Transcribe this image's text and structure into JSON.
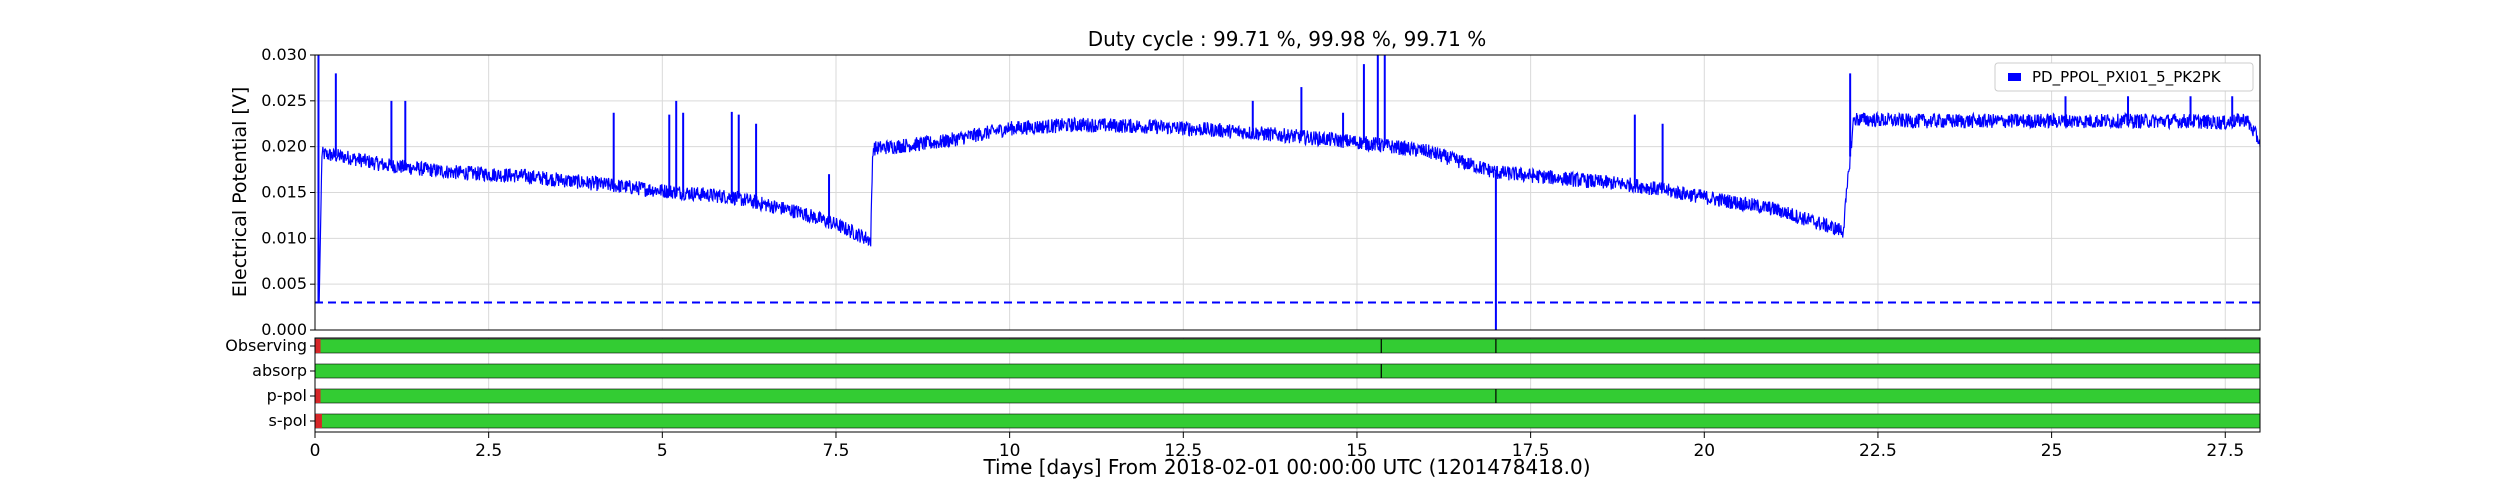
{
  "title": "Duty cycle : 99.71 %, 99.98 %, 99.71 %",
  "colors": {
    "signal": "#0000ff",
    "segment_active": "#33cc33",
    "segment_inactive": "#d62728",
    "grid": "#d9d9d9"
  },
  "chart_data": {
    "type": "line",
    "title": "Duty cycle : 99.71 %, 99.98 %, 99.71 %",
    "xlabel": "Time [days] From 2018-02-01 00:00:00 UTC (1201478418.0)",
    "ylabel": "Electrical Potential [V]",
    "xlim": [
      0,
      28
    ],
    "ylim": [
      0.0,
      0.03
    ],
    "x_ticks": [
      "0",
      "2.5",
      "5",
      "7.5",
      "10",
      "12.5",
      "15",
      "17.5",
      "20",
      "22.5",
      "25",
      "27.5"
    ],
    "y_ticks": [
      "0.000",
      "0.005",
      "0.010",
      "0.015",
      "0.020",
      "0.025",
      "0.030"
    ],
    "grid": true,
    "legend_position": "top-right",
    "series": [
      {
        "name": "PD_PPOL_PXI01_5_PK2PK",
        "style": "solid",
        "x": [
          0.0,
          0.06,
          0.1,
          0.5,
          1.0,
          2.0,
          3.0,
          4.0,
          5.0,
          6.0,
          7.0,
          7.5,
          8.0,
          8.03,
          9.0,
          10.0,
          11.0,
          12.0,
          13.0,
          14.0,
          15.0,
          16.0,
          17.0,
          18.0,
          19.0,
          20.0,
          21.0,
          22.0,
          22.15,
          23.0,
          24.0,
          25.0,
          26.0,
          27.0,
          27.5,
          27.8,
          28.0
        ],
        "y": [
          0.003,
          0.003,
          0.0192,
          0.0188,
          0.018,
          0.0172,
          0.0168,
          0.016,
          0.0152,
          0.0145,
          0.0128,
          0.0115,
          0.0098,
          0.0198,
          0.0205,
          0.022,
          0.0224,
          0.0222,
          0.0218,
          0.0212,
          0.0205,
          0.0195,
          0.0172,
          0.0165,
          0.0158,
          0.0145,
          0.0132,
          0.0108,
          0.023,
          0.0228,
          0.0228,
          0.0228,
          0.0228,
          0.0228,
          0.0226,
          0.023,
          0.0205
        ]
      },
      {
        "name": "",
        "style": "dashed",
        "x": [
          0.0,
          28.0
        ],
        "y": [
          0.003,
          0.003
        ]
      }
    ],
    "spikes": [
      {
        "x": 0.05,
        "y": 0.03
      },
      {
        "x": 0.3,
        "y": 0.028
      },
      {
        "x": 1.1,
        "y": 0.025
      },
      {
        "x": 1.3,
        "y": 0.025
      },
      {
        "x": 4.3,
        "y": 0.0237
      },
      {
        "x": 5.1,
        "y": 0.0235
      },
      {
        "x": 5.2,
        "y": 0.025
      },
      {
        "x": 5.3,
        "y": 0.0237
      },
      {
        "x": 6.0,
        "y": 0.0238
      },
      {
        "x": 6.1,
        "y": 0.0235
      },
      {
        "x": 6.35,
        "y": 0.0225
      },
      {
        "x": 7.4,
        "y": 0.017
      },
      {
        "x": 13.5,
        "y": 0.025
      },
      {
        "x": 14.2,
        "y": 0.0265
      },
      {
        "x": 14.8,
        "y": 0.0237
      },
      {
        "x": 15.1,
        "y": 0.029
      },
      {
        "x": 15.3,
        "y": 0.03
      },
      {
        "x": 15.4,
        "y": 0.03
      },
      {
        "x": 19.0,
        "y": 0.0235
      },
      {
        "x": 19.4,
        "y": 0.0225
      },
      {
        "x": 22.1,
        "y": 0.028
      },
      {
        "x": 25.2,
        "y": 0.0255
      },
      {
        "x": 26.1,
        "y": 0.0255
      },
      {
        "x": 27.0,
        "y": 0.0255
      },
      {
        "x": 27.6,
        "y": 0.0255
      }
    ],
    "dips": [
      {
        "x": 17.0,
        "y": 0.0
      }
    ],
    "segments": [
      {
        "label": "Observing",
        "inactive": [
          [
            0.0,
            0.08
          ]
        ],
        "ticks": [
          15.35,
          17.0
        ]
      },
      {
        "label": "absorp",
        "inactive": [],
        "ticks": [
          15.35
        ]
      },
      {
        "label": "p-pol",
        "inactive": [
          [
            0.0,
            0.08
          ]
        ],
        "ticks": [
          17.0
        ]
      },
      {
        "label": "s-pol",
        "inactive": [
          [
            0.0,
            0.1
          ]
        ],
        "ticks": []
      }
    ]
  }
}
